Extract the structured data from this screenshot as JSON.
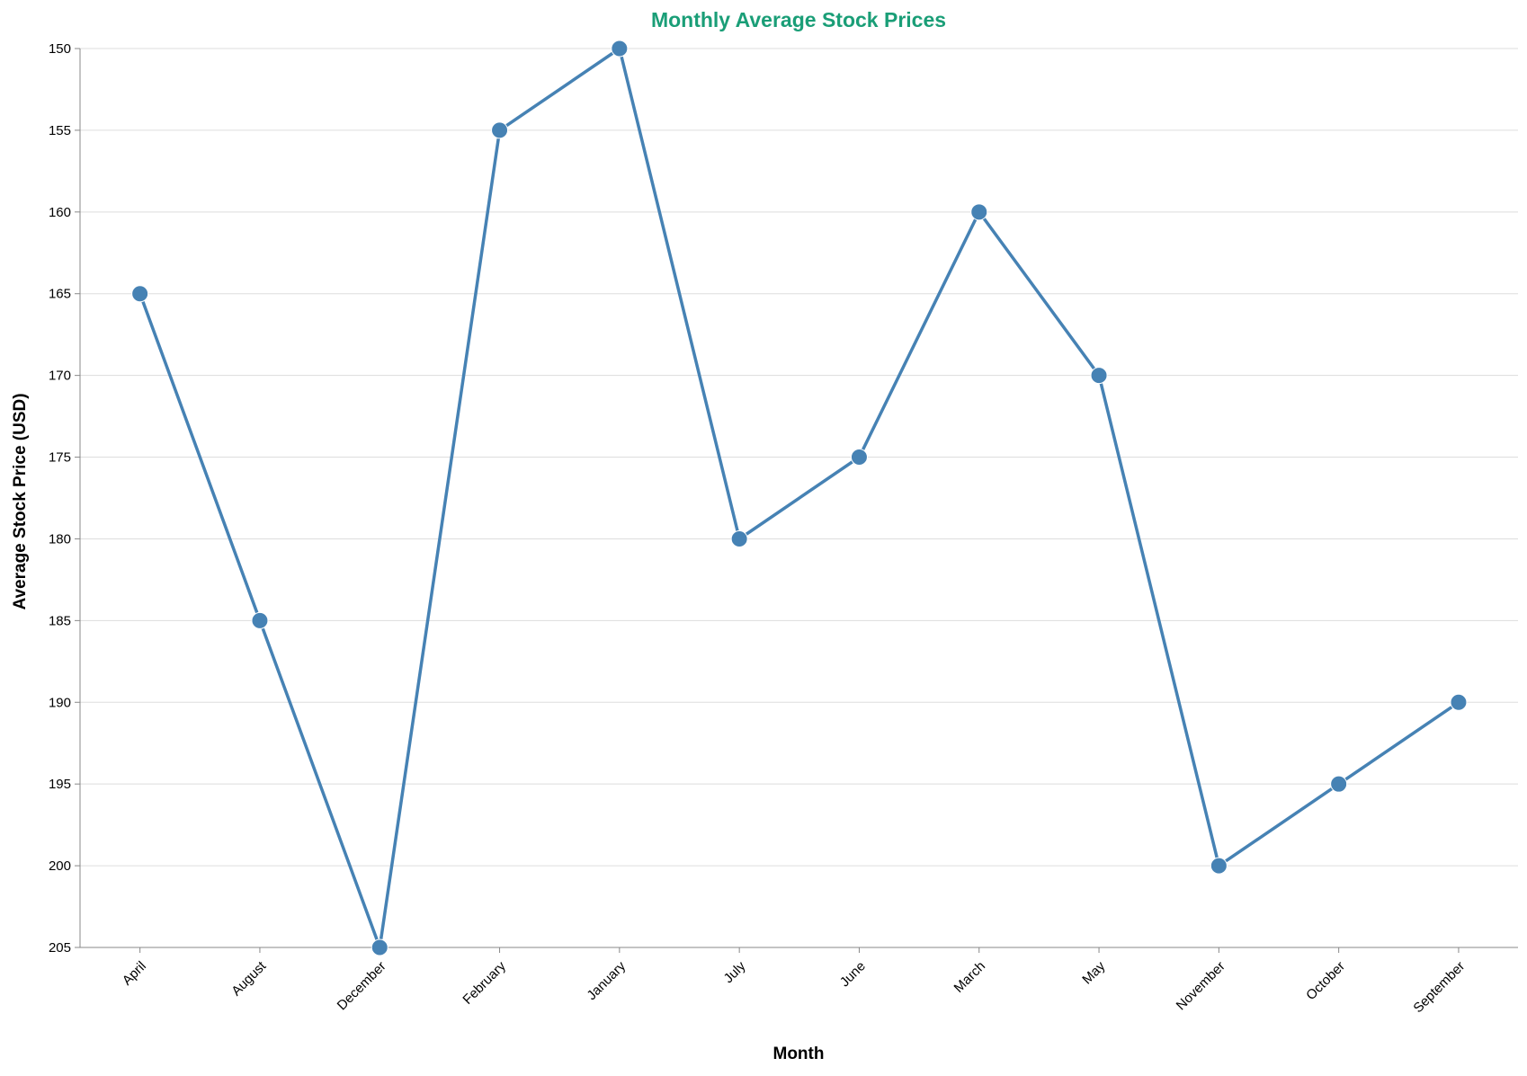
{
  "chart_data": {
    "type": "line",
    "title": "Monthly Average Stock Prices",
    "xlabel": "Month",
    "ylabel": "Average Stock Price (USD)",
    "categories": [
      "April",
      "August",
      "December",
      "February",
      "January",
      "July",
      "June",
      "March",
      "May",
      "November",
      "October",
      "September"
    ],
    "values": [
      165,
      185,
      205,
      155,
      150,
      180,
      175,
      160,
      170,
      200,
      195,
      190
    ],
    "ylim": [
      150,
      205
    ],
    "y_reversed": true,
    "y_ticks": [
      150,
      155,
      160,
      165,
      170,
      175,
      180,
      185,
      190,
      195,
      200,
      205
    ],
    "grid": "horizontal",
    "markers": true
  },
  "colors": {
    "title": "#1a9e77",
    "series": "#4682b4",
    "grid": "#dddddd",
    "axis": "#888888"
  }
}
